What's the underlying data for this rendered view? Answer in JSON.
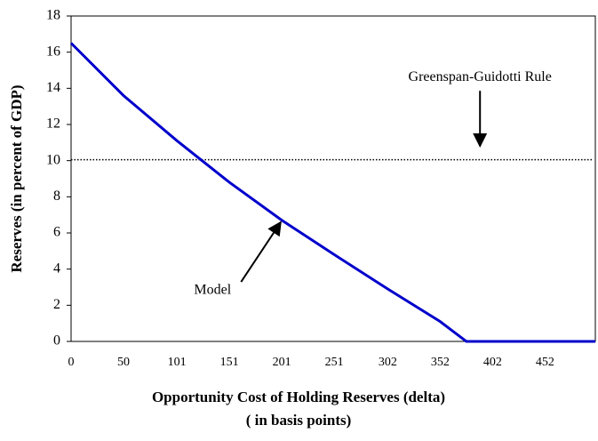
{
  "chart_data": {
    "type": "line",
    "x_label": [
      "Opportunity Cost of Holding Reserves (delta)",
      "( in basis points)"
    ],
    "y_label": "Reserves (in percent of GDP)",
    "x": [
      0,
      50,
      101,
      151,
      201,
      251,
      302,
      352,
      377,
      500
    ],
    "series": [
      {
        "color": "#0000cc",
        "values": [
          16.5,
          13.6,
          11.1,
          8.8,
          6.7,
          4.8,
          2.9,
          1.1,
          0,
          0
        ]
      }
    ],
    "reference_line": {
      "value": 10.05,
      "color": "#000000"
    },
    "annotations": [
      {
        "text": "Greenspan-Guidotti Rule",
        "x": 390,
        "y": 14.6,
        "arrow_to": [
          390,
          10.8
        ]
      },
      {
        "text": "Model",
        "x": 135,
        "y": 2.8,
        "arrow_to": [
          200,
          6.6
        ]
      }
    ],
    "xlim": [
      0,
      500
    ],
    "ylim": [
      0,
      18
    ],
    "xticks": [
      0,
      50,
      101,
      151,
      201,
      251,
      302,
      352,
      402,
      452
    ],
    "yticks": [
      0,
      2,
      4,
      6,
      8,
      10,
      12,
      14,
      16,
      18
    ]
  }
}
